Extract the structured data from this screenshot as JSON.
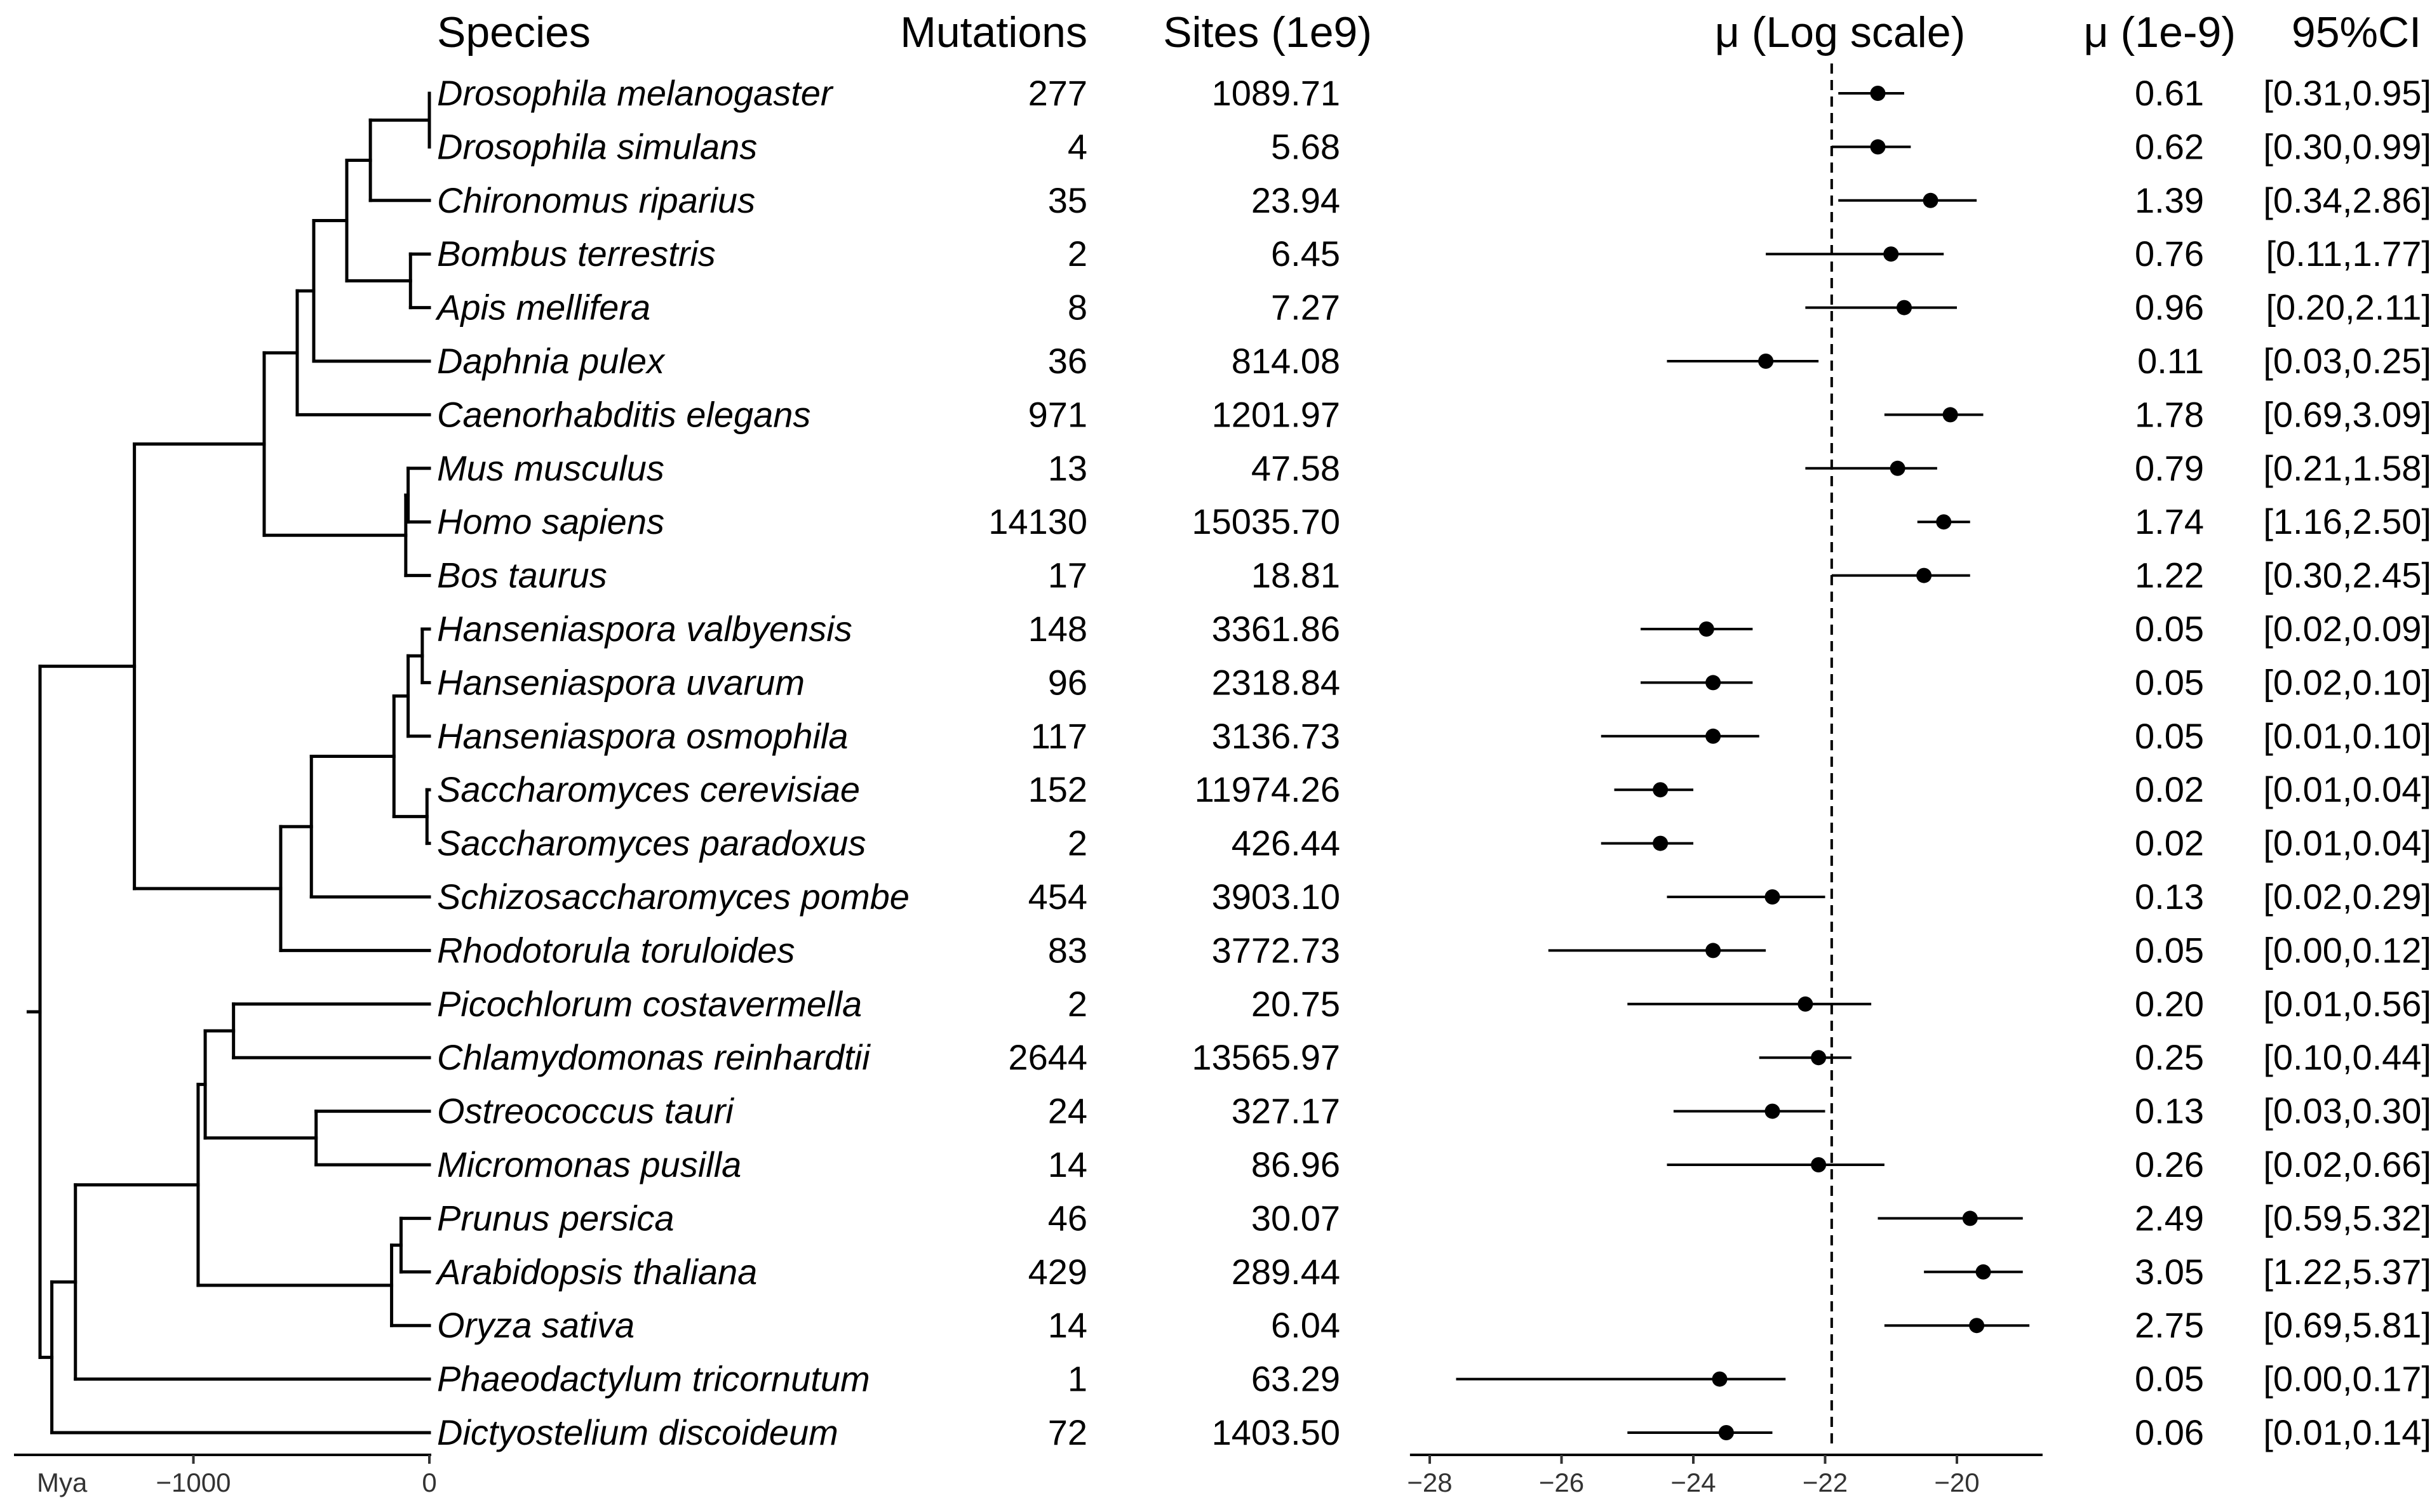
{
  "headers": {
    "species": "Species",
    "mutations": "Mutations",
    "sites": "Sites (1e9)",
    "mu_log": "μ (Log scale)",
    "mu": "μ (1e-9)",
    "ci": "95%CI"
  },
  "chart_data": [
    {
      "type": "tree",
      "xlabel": "Mya",
      "ticks": [
        -1000,
        0
      ],
      "tick_labels": [
        "−1000",
        "0"
      ],
      "xlim": [
        -1700,
        0
      ],
      "nodes": [
        {
          "id": "n_dmel_dsim",
          "age": 0,
          "children": [
            "Drosophila melanogaster",
            "Drosophila simulans"
          ]
        },
        {
          "id": "n_dip",
          "age": -250,
          "children": [
            "n_dmel_dsim",
            "Chironomus riparius"
          ]
        },
        {
          "id": "n_hym",
          "age": -80,
          "children": [
            "Bombus terrestris",
            "Apis mellifera"
          ]
        },
        {
          "id": "n_ins",
          "age": -350,
          "children": [
            "n_dip",
            "n_hym"
          ]
        },
        {
          "id": "n_pan",
          "age": -490,
          "children": [
            "n_ins",
            "Daphnia pulex"
          ]
        },
        {
          "id": "n_ecd",
          "age": -560,
          "children": [
            "n_pan",
            "Caenorhabditis elegans"
          ]
        },
        {
          "id": "n_mus_homo",
          "age": -90,
          "children": [
            "Mus musculus",
            "Homo sapiens"
          ]
        },
        {
          "id": "n_mam",
          "age": -100,
          "children": [
            "n_mus_homo",
            "Bos taurus"
          ]
        },
        {
          "id": "n_bil",
          "age": -700,
          "children": [
            "n_ecd",
            "n_mam"
          ]
        },
        {
          "id": "n_hval_huva",
          "age": -30,
          "children": [
            "Hanseniaspora valbyensis",
            "Hanseniaspora uvarum"
          ]
        },
        {
          "id": "n_hans",
          "age": -90,
          "children": [
            "n_hval_huva",
            "Hanseniaspora osmophila"
          ]
        },
        {
          "id": "n_sacc",
          "age": -10,
          "children": [
            "Saccharomyces cerevisiae",
            "Saccharomyces paradoxus"
          ]
        },
        {
          "id": "n_sacch",
          "age": -150,
          "children": [
            "n_hans",
            "n_sacc"
          ]
        },
        {
          "id": "n_asco",
          "age": -500,
          "children": [
            "n_sacch",
            "Schizosaccharomyces pombe"
          ]
        },
        {
          "id": "n_fungi",
          "age": -630,
          "children": [
            "n_asco",
            "Rhodotorula toruloides"
          ]
        },
        {
          "id": "n_opist",
          "age": -1250,
          "children": [
            "n_bil",
            "n_fungi"
          ]
        },
        {
          "id": "n_chloro",
          "age": -830,
          "children": [
            "Picochlorum costavermella",
            "Chlamydomonas reinhardtii"
          ]
        },
        {
          "id": "n_mamiel",
          "age": -480,
          "children": [
            "Ostreococcus tauri",
            "Micromonas pusilla"
          ]
        },
        {
          "id": "n_chlor_all",
          "age": -950,
          "children": [
            "n_chloro",
            "n_mamiel"
          ]
        },
        {
          "id": "n_rosid",
          "age": -120,
          "children": [
            "Prunus persica",
            "Arabidopsis thaliana"
          ]
        },
        {
          "id": "n_angio",
          "age": -160,
          "children": [
            "n_rosid",
            "Oryza sativa"
          ]
        },
        {
          "id": "n_green",
          "age": -980,
          "children": [
            "n_chlor_all",
            "n_angio"
          ]
        },
        {
          "id": "n_photo",
          "age": -1500,
          "children": [
            "n_green",
            "Phaeodactylum tricornutum"
          ]
        },
        {
          "id": "n_amorph",
          "age": -1600,
          "children": [
            "n_photo",
            "Dictyostelium discoideum"
          ]
        },
        {
          "id": "root",
          "age": -1650,
          "children": [
            "n_opist",
            "n_amorph"
          ]
        }
      ],
      "root": "root"
    },
    {
      "type": "table",
      "columns": [
        "Species",
        "Mutations",
        "Sites (1e9)",
        "μ (1e-9)",
        "95%CI"
      ],
      "rows": [
        {
          "species": "Drosophila melanogaster",
          "mutations": "277",
          "sites": "1089.71",
          "mu": "0.61",
          "ci": "[0.31,0.95]"
        },
        {
          "species": "Drosophila simulans",
          "mutations": "4",
          "sites": "5.68",
          "mu": "0.62",
          "ci": "[0.30,0.99]"
        },
        {
          "species": "Chironomus riparius",
          "mutations": "35",
          "sites": "23.94",
          "mu": "1.39",
          "ci": "[0.34,2.86]"
        },
        {
          "species": "Bombus terrestris",
          "mutations": "2",
          "sites": "6.45",
          "mu": "0.76",
          "ci": "[0.11,1.77]"
        },
        {
          "species": "Apis mellifera",
          "mutations": "8",
          "sites": "7.27",
          "mu": "0.96",
          "ci": "[0.20,2.11]"
        },
        {
          "species": "Daphnia pulex",
          "mutations": "36",
          "sites": "814.08",
          "mu": "0.11",
          "ci": "[0.03,0.25]"
        },
        {
          "species": "Caenorhabditis elegans",
          "mutations": "971",
          "sites": "1201.97",
          "mu": "1.78",
          "ci": "[0.69,3.09]"
        },
        {
          "species": "Mus musculus",
          "mutations": "13",
          "sites": "47.58",
          "mu": "0.79",
          "ci": "[0.21,1.58]"
        },
        {
          "species": "Homo sapiens",
          "mutations": "14130",
          "sites": "15035.70",
          "mu": "1.74",
          "ci": "[1.16,2.50]"
        },
        {
          "species": "Bos taurus",
          "mutations": "17",
          "sites": "18.81",
          "mu": "1.22",
          "ci": "[0.30,2.45]"
        },
        {
          "species": "Hanseniaspora valbyensis",
          "mutations": "148",
          "sites": "3361.86",
          "mu": "0.05",
          "ci": "[0.02,0.09]"
        },
        {
          "species": "Hanseniaspora uvarum",
          "mutations": "96",
          "sites": "2318.84",
          "mu": "0.05",
          "ci": "[0.02,0.10]"
        },
        {
          "species": "Hanseniaspora osmophila",
          "mutations": "117",
          "sites": "3136.73",
          "mu": "0.05",
          "ci": "[0.01,0.10]"
        },
        {
          "species": "Saccharomyces cerevisiae",
          "mutations": "152",
          "sites": "11974.26",
          "mu": "0.02",
          "ci": "[0.01,0.04]"
        },
        {
          "species": "Saccharomyces paradoxus",
          "mutations": "2",
          "sites": "426.44",
          "mu": "0.02",
          "ci": "[0.01,0.04]"
        },
        {
          "species": "Schizosaccharomyces pombe",
          "mutations": "454",
          "sites": "3903.10",
          "mu": "0.13",
          "ci": "[0.02,0.29]"
        },
        {
          "species": "Rhodotorula toruloides",
          "mutations": "83",
          "sites": "3772.73",
          "mu": "0.05",
          "ci": "[0.00,0.12]"
        },
        {
          "species": "Picochlorum costavermella",
          "mutations": "2",
          "sites": "20.75",
          "mu": "0.20",
          "ci": "[0.01,0.56]"
        },
        {
          "species": "Chlamydomonas reinhardtii",
          "mutations": "2644",
          "sites": "13565.97",
          "mu": "0.25",
          "ci": "[0.10,0.44]"
        },
        {
          "species": "Ostreococcus tauri",
          "mutations": "24",
          "sites": "327.17",
          "mu": "0.13",
          "ci": "[0.03,0.30]"
        },
        {
          "species": "Micromonas pusilla",
          "mutations": "14",
          "sites": "86.96",
          "mu": "0.26",
          "ci": "[0.02,0.66]"
        },
        {
          "species": "Prunus persica",
          "mutations": "46",
          "sites": "30.07",
          "mu": "2.49",
          "ci": "[0.59,5.32]"
        },
        {
          "species": "Arabidopsis thaliana",
          "mutations": "429",
          "sites": "289.44",
          "mu": "3.05",
          "ci": "[1.22,5.37]"
        },
        {
          "species": "Oryza sativa",
          "mutations": "14",
          "sites": "6.04",
          "mu": "2.75",
          "ci": "[0.69,5.81]"
        },
        {
          "species": "Phaeodactylum tricornutum",
          "mutations": "1",
          "sites": "63.29",
          "mu": "0.05",
          "ci": "[0.00,0.17]"
        },
        {
          "species": "Dictyostelium discoideum",
          "mutations": "72",
          "sites": "1403.50",
          "mu": "0.06",
          "ci": "[0.01,0.14]"
        }
      ]
    },
    {
      "type": "scatter",
      "title": "μ (Log scale)",
      "xlim": [
        -28.3,
        -18.7
      ],
      "xticks": [
        -28,
        -26,
        -24,
        -22,
        -20
      ],
      "xtick_labels": [
        "−28",
        "−26",
        "−24",
        "−22",
        "−20"
      ],
      "reference_line": -21.9,
      "grid": false,
      "point_color": "#000000",
      "points": [
        {
          "species": "Drosophila melanogaster",
          "x": -21.2,
          "lo": -21.8,
          "hi": -20.8
        },
        {
          "species": "Drosophila simulans",
          "x": -21.2,
          "lo": -21.9,
          "hi": -20.7
        },
        {
          "species": "Chironomus riparius",
          "x": -20.4,
          "lo": -21.8,
          "hi": -19.7
        },
        {
          "species": "Bombus terrestris",
          "x": -21.0,
          "lo": -22.9,
          "hi": -20.2
        },
        {
          "species": "Apis mellifera",
          "x": -20.8,
          "lo": -22.3,
          "hi": -20.0
        },
        {
          "species": "Daphnia pulex",
          "x": -22.9,
          "lo": -24.4,
          "hi": -22.1
        },
        {
          "species": "Caenorhabditis elegans",
          "x": -20.1,
          "lo": -21.1,
          "hi": -19.6
        },
        {
          "species": "Mus musculus",
          "x": -20.9,
          "lo": -22.3,
          "hi": -20.3
        },
        {
          "species": "Homo sapiens",
          "x": -20.2,
          "lo": -20.6,
          "hi": -19.8
        },
        {
          "species": "Bos taurus",
          "x": -20.5,
          "lo": -21.9,
          "hi": -19.8
        },
        {
          "species": "Hanseniaspora valbyensis",
          "x": -23.8,
          "lo": -24.8,
          "hi": -23.1
        },
        {
          "species": "Hanseniaspora uvarum",
          "x": -23.7,
          "lo": -24.8,
          "hi": -23.1
        },
        {
          "species": "Hanseniaspora osmophila",
          "x": -23.7,
          "lo": -25.4,
          "hi": -23.0
        },
        {
          "species": "Saccharomyces cerevisiae",
          "x": -24.5,
          "lo": -25.2,
          "hi": -24.0
        },
        {
          "species": "Saccharomyces paradoxus",
          "x": -24.5,
          "lo": -25.4,
          "hi": -24.0
        },
        {
          "species": "Schizosaccharomyces pombe",
          "x": -22.8,
          "lo": -24.4,
          "hi": -22.0
        },
        {
          "species": "Rhodotorula toruloides",
          "x": -23.7,
          "lo": -26.2,
          "hi": -22.9
        },
        {
          "species": "Picochlorum costavermella",
          "x": -22.3,
          "lo": -25.0,
          "hi": -21.3
        },
        {
          "species": "Chlamydomonas reinhardtii",
          "x": -22.1,
          "lo": -23.0,
          "hi": -21.6
        },
        {
          "species": "Ostreococcus tauri",
          "x": -22.8,
          "lo": -24.3,
          "hi": -22.0
        },
        {
          "species": "Micromonas pusilla",
          "x": -22.1,
          "lo": -24.4,
          "hi": -21.1
        },
        {
          "species": "Prunus persica",
          "x": -19.8,
          "lo": -21.2,
          "hi": -19.0
        },
        {
          "species": "Arabidopsis thaliana",
          "x": -19.6,
          "lo": -20.5,
          "hi": -19.0
        },
        {
          "species": "Oryza sativa",
          "x": -19.7,
          "lo": -21.1,
          "hi": -18.9
        },
        {
          "species": "Phaeodactylum tricornutum",
          "x": -23.6,
          "lo": -27.6,
          "hi": -22.6
        },
        {
          "species": "Dictyostelium discoideum",
          "x": -23.5,
          "lo": -25.0,
          "hi": -22.8
        }
      ]
    }
  ]
}
